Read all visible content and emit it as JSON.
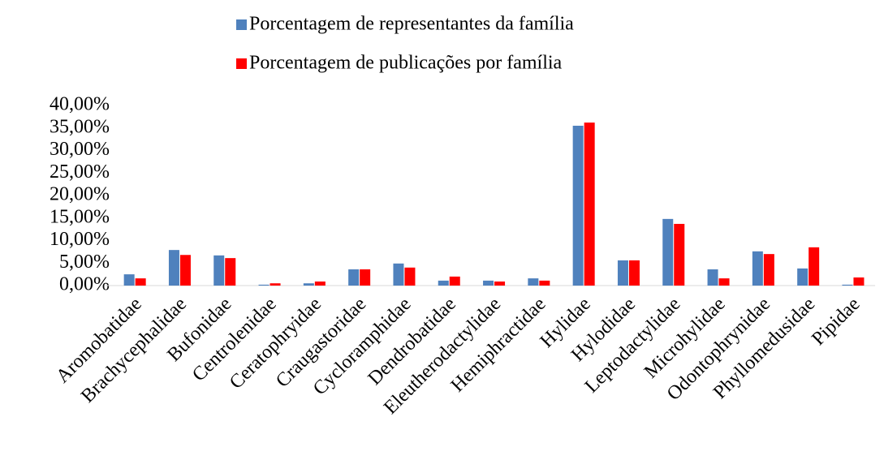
{
  "chart_data": {
    "type": "bar",
    "categories": [
      "Aromobatidae",
      "Brachycephalidae",
      "Bufonidae",
      "Centrolenidae",
      "Ceratophryidae",
      "Craugastoridae",
      "Cycloramphidae",
      "Dendrobatidae",
      "Eleutherodactylidae",
      "Hemiphractidae",
      "Hylidae",
      "Hylodidae",
      "Leptodactylidae",
      "Microhylidae",
      "Odontophrynidae",
      "Phyllomedusidae",
      "Pipidae"
    ],
    "series": [
      {
        "name": "Porcentagem de representantes da família",
        "color": "#4f81bd",
        "values": [
          2.5,
          7.9,
          6.7,
          0.2,
          0.5,
          3.6,
          4.9,
          1.1,
          1.1,
          1.6,
          35.5,
          5.6,
          14.8,
          3.6,
          7.6,
          3.8,
          0.2
        ]
      },
      {
        "name": "Porcentagem de publicações por família",
        "color": "#ff0000",
        "values": [
          1.6,
          6.8,
          6.1,
          0.5,
          0.9,
          3.6,
          4.0,
          2.0,
          0.9,
          1.1,
          36.2,
          5.6,
          13.7,
          1.6,
          7.0,
          8.5,
          1.8
        ]
      }
    ],
    "ylim": [
      0,
      40
    ],
    "yticks": [
      {
        "value": 0,
        "label": "0,00%"
      },
      {
        "value": 5,
        "label": "5,00%"
      },
      {
        "value": 10,
        "label": "10,00%"
      },
      {
        "value": 15,
        "label": "15,00%"
      },
      {
        "value": 20,
        "label": "20,00%"
      },
      {
        "value": 25,
        "label": "25,00%"
      },
      {
        "value": 30,
        "label": "30,00%"
      },
      {
        "value": 35,
        "label": "35,00%"
      },
      {
        "value": 40,
        "label": "40,00%"
      }
    ],
    "grid": false,
    "legend": "top"
  }
}
